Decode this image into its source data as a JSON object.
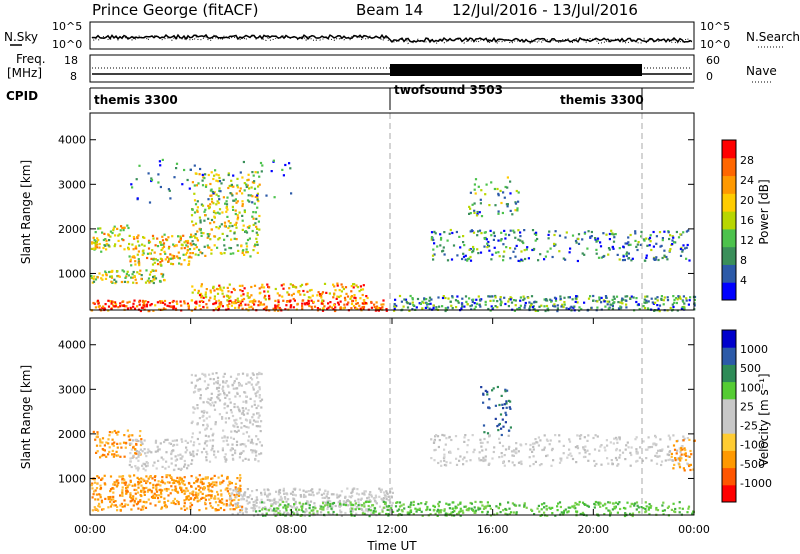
{
  "header": {
    "station": "Prince George (fitACF)",
    "beam": "Beam 14",
    "date_range": "12/Jul/2016 - 13/Jul/2016"
  },
  "summary": {
    "nsky_label": "N.Sky",
    "nsky_ticks": [
      "10^5",
      "10^0"
    ],
    "nsearch_label": "N.Search",
    "nsearch_ticks": [
      "10^5",
      "10^0"
    ],
    "freq_label_1": "Freq.",
    "freq_label_2": "[MHz]",
    "freq_ticks": [
      "18",
      "8"
    ],
    "nave_label": "Nave",
    "nave_ticks": [
      "60",
      "0"
    ],
    "cpid_label": "CPID",
    "cpid_segments": [
      {
        "name": "themis 3300",
        "start": 0,
        "end": 12
      },
      {
        "name": "twofsound 3503",
        "start": 12,
        "end": 22
      },
      {
        "name": "themis 3300",
        "start": 22,
        "end": 24
      }
    ]
  },
  "chart_data": [
    {
      "type": "heatmap",
      "parameter": "Power",
      "ylabel": "Slant Range [km]",
      "xlabel": "",
      "xlim": [
        0,
        24
      ],
      "ylim": [
        180,
        4600
      ],
      "yticks": [
        1000,
        2000,
        3000,
        4000
      ],
      "colorbar_label": "Power [dB]",
      "colorbar_ticks": [
        "4",
        "8",
        "12",
        "16",
        "20",
        "24",
        "28"
      ],
      "colorbar_colors": [
        "#0000ff",
        "#2c5aa8",
        "#3a8f5a",
        "#4cc24c",
        "#b8d600",
        "#ffcc00",
        "#ff9900",
        "#ff6600",
        "#ff0000"
      ],
      "scatter_regions": [
        {
          "t0": 0,
          "t1": 11.8,
          "r0": 180,
          "r1": 420,
          "density": 0.95,
          "value": 0.85
        },
        {
          "t0": 0,
          "t1": 3.0,
          "r0": 800,
          "r1": 1100,
          "density": 0.8,
          "value": 0.5
        },
        {
          "t0": 0,
          "t1": 1.5,
          "r0": 1500,
          "r1": 2100,
          "density": 0.6,
          "value": 0.55
        },
        {
          "t0": 1.5,
          "t1": 4.0,
          "r0": 1200,
          "r1": 1900,
          "density": 0.7,
          "value": 0.6
        },
        {
          "t0": 4.0,
          "t1": 6.7,
          "r0": 1400,
          "r1": 3300,
          "density": 0.45,
          "value": 0.5
        },
        {
          "t0": 4.0,
          "t1": 11.0,
          "r0": 400,
          "r1": 800,
          "density": 0.55,
          "value": 0.7
        },
        {
          "t0": 12.0,
          "t1": 24.0,
          "r0": 180,
          "r1": 520,
          "density": 0.75,
          "value": 0.3
        },
        {
          "t0": 13.5,
          "t1": 23.8,
          "r0": 1300,
          "r1": 2000,
          "density": 0.35,
          "value": 0.25
        },
        {
          "t0": 15.0,
          "t1": 17.0,
          "r0": 2300,
          "r1": 3200,
          "density": 0.25,
          "value": 0.35
        },
        {
          "t0": 1.5,
          "t1": 8.0,
          "r0": 2600,
          "r1": 3600,
          "density": 0.08,
          "value": 0.2
        }
      ]
    },
    {
      "type": "heatmap",
      "parameter": "Velocity",
      "ylabel": "Slant Range [km]",
      "xlabel": "Time UT",
      "xlim": [
        0,
        24
      ],
      "ylim": [
        180,
        4600
      ],
      "yticks": [
        1000,
        2000,
        3000,
        4000
      ],
      "xticks": [
        "00:00",
        "04:00",
        "08:00",
        "12:00",
        "16:00",
        "20:00",
        "00:00"
      ],
      "colorbar_label": "Velocity [m s⁻¹]",
      "colorbar_ticks": [
        "-1000",
        "-500",
        "-100",
        "-25",
        "25",
        "100",
        "500",
        "1000"
      ],
      "colorbar_colors": [
        "#ff0000",
        "#ff5500",
        "#ff9900",
        "#ffcc33",
        "#c8c8c8",
        "#c8c8c8",
        "#55cc33",
        "#2e8b57",
        "#2c5aa8",
        "#0000cc"
      ],
      "scatter_regions": [
        {
          "t0": 0,
          "t1": 6.0,
          "r0": 300,
          "r1": 1100,
          "density": 0.85,
          "value": "orange"
        },
        {
          "t0": 0,
          "t1": 2.0,
          "r0": 1500,
          "r1": 2100,
          "density": 0.55,
          "value": "orange"
        },
        {
          "t0": 1.5,
          "t1": 4.0,
          "r0": 1200,
          "r1": 1900,
          "density": 0.55,
          "value": "gray"
        },
        {
          "t0": 4.0,
          "t1": 6.8,
          "r0": 1400,
          "r1": 3400,
          "density": 0.5,
          "value": "gray"
        },
        {
          "t0": 5.5,
          "t1": 12.0,
          "r0": 180,
          "r1": 800,
          "density": 0.75,
          "value": "gray"
        },
        {
          "t0": 6.5,
          "t1": 12.0,
          "r0": 180,
          "r1": 500,
          "density": 0.6,
          "value": "green"
        },
        {
          "t0": 12.0,
          "t1": 24.0,
          "r0": 180,
          "r1": 500,
          "density": 0.7,
          "value": "green"
        },
        {
          "t0": 13.5,
          "t1": 23.8,
          "r0": 1300,
          "r1": 2000,
          "density": 0.35,
          "value": "gray"
        },
        {
          "t0": 15.5,
          "t1": 16.7,
          "r0": 2000,
          "r1": 3100,
          "density": 0.3,
          "value": "blue"
        },
        {
          "t0": 23.0,
          "t1": 24.0,
          "r0": 1200,
          "r1": 1900,
          "density": 0.45,
          "value": "orange"
        }
      ]
    }
  ]
}
